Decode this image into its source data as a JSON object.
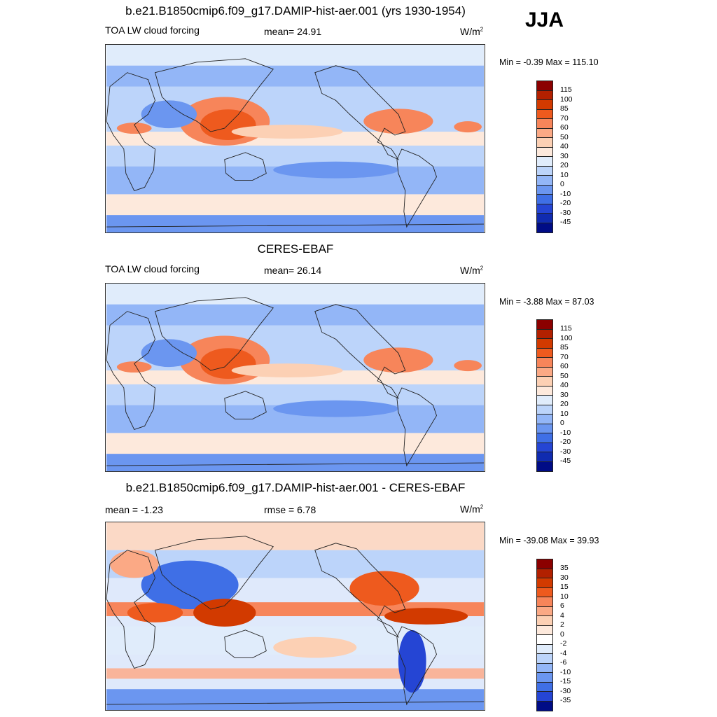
{
  "season": "JJA",
  "units_base": "W/m",
  "units_sup": "2",
  "panels": [
    {
      "title": "b.e21.B1850cmip6.f09_g17.DAMIP-hist-aer.001 (yrs 1930-1954)",
      "left_label": "TOA LW cloud forcing",
      "center_label": "mean=  24.91",
      "minmax": "Min =  -0.39 Max = 115.10",
      "palette": "abs"
    },
    {
      "title": "CERES-EBAF",
      "left_label": "TOA LW cloud forcing",
      "center_label": "mean=  26.14",
      "minmax": "Min =  -3.88 Max =  87.03",
      "palette": "abs"
    },
    {
      "title": "b.e21.B1850cmip6.f09_g17.DAMIP-hist-aer.001 - CERES-EBAF",
      "left_label": "mean =  -1.23",
      "center_label": "rmse =   6.78",
      "minmax": "Min = -39.08 Max =  39.93",
      "palette": "diff"
    }
  ],
  "colorbars": {
    "abs": {
      "labels": [
        "115",
        "100",
        "85",
        "70",
        "60",
        "50",
        "40",
        "30",
        "20",
        "10",
        "0",
        "-10",
        "-20",
        "-30",
        "-45"
      ],
      "colors": [
        "#8b0000",
        "#b22000",
        "#d23a00",
        "#ee5a1e",
        "#f7855a",
        "#fba985",
        "#fcd0b4",
        "#fde9dc",
        "#e0ecfb",
        "#bcd4fa",
        "#93b6f7",
        "#6b96f0",
        "#3f6fe6",
        "#2545d4",
        "#102bb0",
        "#000c86"
      ]
    },
    "diff": {
      "labels": [
        "35",
        "30",
        "15",
        "10",
        "6",
        "4",
        "2",
        "0",
        "-2",
        "-4",
        "-6",
        "-10",
        "-15",
        "-30",
        "-35"
      ],
      "colors": [
        "#8b0000",
        "#b22000",
        "#d23a00",
        "#ee5a1e",
        "#f7855a",
        "#fba985",
        "#fcd0b4",
        "#fde9dc",
        "#ffffff",
        "#e0ecfb",
        "#bcd4fa",
        "#93b6f7",
        "#6b96f0",
        "#3f6fe6",
        "#2545d4",
        "#000c86"
      ]
    }
  }
}
